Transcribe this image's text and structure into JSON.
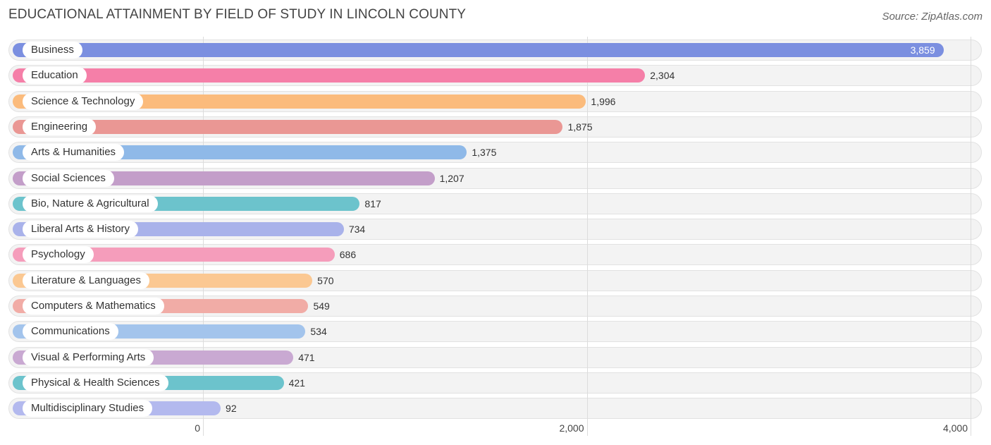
{
  "header": {
    "title": "EDUCATIONAL ATTAINMENT BY FIELD OF STUDY IN LINCOLN COUNTY",
    "source": "Source: ZipAtlas.com"
  },
  "chart_data": {
    "type": "bar",
    "orientation": "horizontal",
    "title": "EDUCATIONAL ATTAINMENT BY FIELD OF STUDY IN LINCOLN COUNTY",
    "xlabel": "",
    "ylabel": "",
    "xlim": [
      0,
      4000
    ],
    "grid": true,
    "ticks": [
      {
        "value": 0,
        "label": "0"
      },
      {
        "value": 2000,
        "label": "2,000"
      },
      {
        "value": 4000,
        "label": "4,000"
      }
    ],
    "categories": [
      "Business",
      "Education",
      "Science & Technology",
      "Engineering",
      "Arts & Humanities",
      "Social Sciences",
      "Bio, Nature & Agricultural",
      "Liberal Arts & History",
      "Psychology",
      "Literature & Languages",
      "Computers & Mathematics",
      "Communications",
      "Visual & Performing Arts",
      "Physical & Health Sciences",
      "Multidisciplinary Studies"
    ],
    "values": [
      3859,
      2304,
      1996,
      1875,
      1375,
      1207,
      817,
      734,
      686,
      570,
      549,
      534,
      471,
      421,
      92
    ],
    "value_labels": [
      "3,859",
      "2,304",
      "1,996",
      "1,875",
      "1,375",
      "1,207",
      "817",
      "734",
      "686",
      "570",
      "549",
      "534",
      "471",
      "421",
      "92"
    ],
    "colors": [
      "#7b8fe0",
      "#f57fa8",
      "#fbbb7c",
      "#ea9794",
      "#8fb9e8",
      "#c39ec9",
      "#6cc3cc",
      "#a9b2ea",
      "#f59dbb",
      "#fbc892",
      "#f1aca6",
      "#a3c4ec",
      "#c9a9d2",
      "#6cc3cc",
      "#b3b9ee"
    ]
  }
}
